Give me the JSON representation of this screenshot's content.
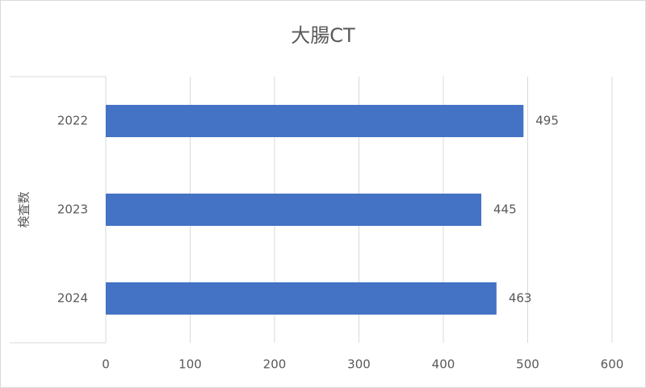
{
  "chart_data": {
    "type": "bar",
    "orientation": "horizontal",
    "title": "大腸CT",
    "y_label": "検査数",
    "categories": [
      "2022",
      "2023",
      "2024"
    ],
    "values": [
      495,
      445,
      463
    ],
    "color": "#4472c4",
    "xlim": [
      0,
      600
    ],
    "xticks": [
      0,
      100,
      200,
      300,
      400,
      500,
      600
    ],
    "grid": true
  }
}
